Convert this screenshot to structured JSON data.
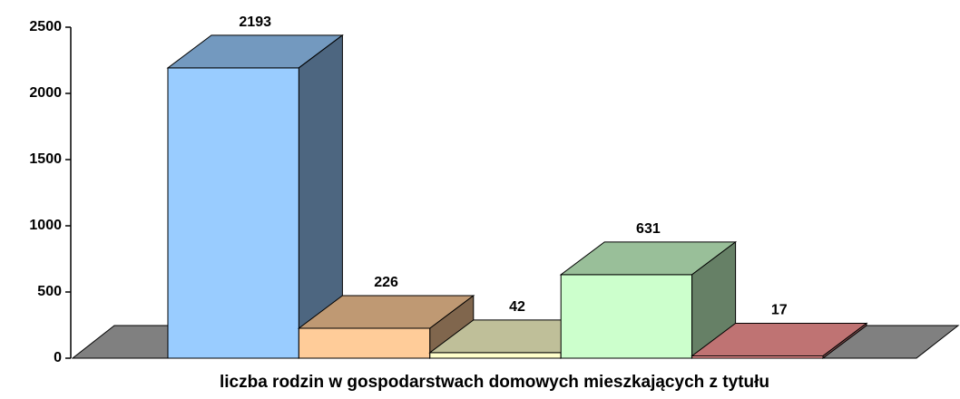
{
  "chart_data": {
    "type": "bar3d",
    "categories": [
      "liczba rodzin w gospodarstwach domowych mieszkających z tytułu"
    ],
    "series": [
      {
        "color": "#99ccff",
        "values": [
          2193
        ]
      },
      {
        "color": "#ffcc99",
        "values": [
          226
        ]
      },
      {
        "color": "#ffffcc",
        "values": [
          42
        ]
      },
      {
        "color": "#ccffcc",
        "values": [
          631
        ]
      },
      {
        "color": "#ff9999",
        "values": [
          17
        ]
      }
    ],
    "ylim": [
      0,
      2500
    ],
    "yticks": [
      0,
      500,
      1000,
      1500,
      2000,
      2500
    ]
  }
}
